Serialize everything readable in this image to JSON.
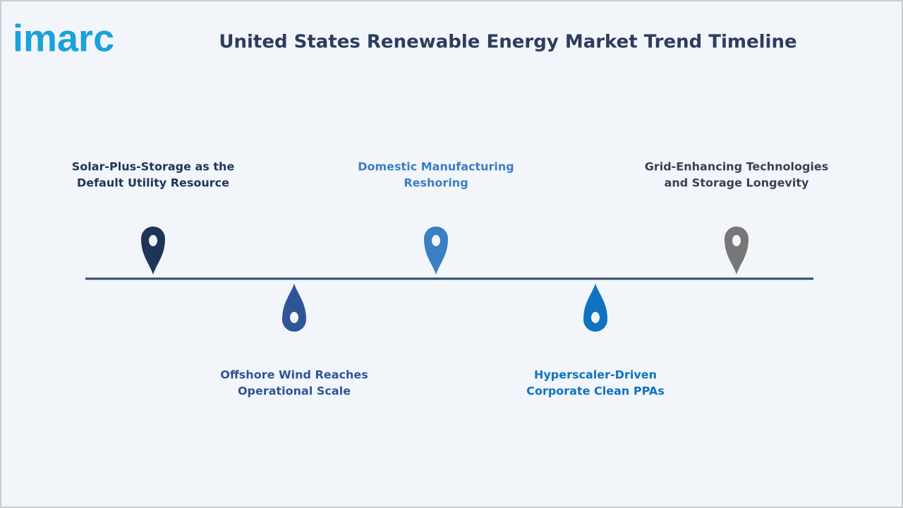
{
  "header": {
    "logo": "imarc",
    "title": "United States Renewable Energy Market Trend Timeline"
  },
  "nodes": [
    {
      "lines": [
        "Solar-Plus-Storage as the",
        "Default Utility Resource"
      ]
    },
    {
      "lines": [
        "Offshore Wind Reaches",
        "Operational Scale"
      ]
    },
    {
      "lines": [
        "Domestic Manufacturing",
        "Reshoring"
      ]
    },
    {
      "lines": [
        "Hyperscaler-Driven",
        "Corporate Clean PPAs"
      ]
    },
    {
      "lines": [
        "Grid-Enhancing Technologies",
        "and Storage Longevity"
      ]
    }
  ]
}
